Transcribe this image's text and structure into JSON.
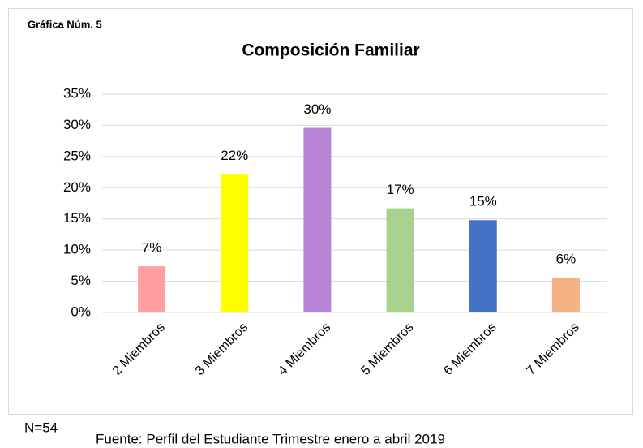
{
  "chart_data": {
    "type": "bar",
    "figure_label": "Gráfica Núm. 5",
    "title": "Composición Familiar",
    "categories": [
      "2 Miembros",
      "3 Miembros",
      "4 Miembros",
      "5 Miembros",
      "6 Miembros",
      "7 Miembros"
    ],
    "values": [
      7.4,
      22.2,
      29.6,
      16.7,
      14.8,
      5.6
    ],
    "value_labels": [
      "7%",
      "22%",
      "30%",
      "17%",
      "15%",
      "6%"
    ],
    "colors": [
      "#ff9f9f",
      "#ffff00",
      "#b784d8",
      "#a9d18e",
      "#4472c4",
      "#f4b183"
    ],
    "ylim": [
      0,
      35
    ],
    "yticks": [
      {
        "value": 0,
        "label": "0%"
      },
      {
        "value": 5,
        "label": "5%"
      },
      {
        "value": 10,
        "label": "10%"
      },
      {
        "value": 15,
        "label": "15%"
      },
      {
        "value": 20,
        "label": "20%"
      },
      {
        "value": 25,
        "label": "25%"
      },
      {
        "value": 30,
        "label": "30%"
      },
      {
        "value": 35,
        "label": "35%"
      }
    ],
    "grid": true,
    "annotations": [
      "N=54",
      "Fuente: Perfil del Estudiante Trimestre enero a abril 2019"
    ]
  }
}
